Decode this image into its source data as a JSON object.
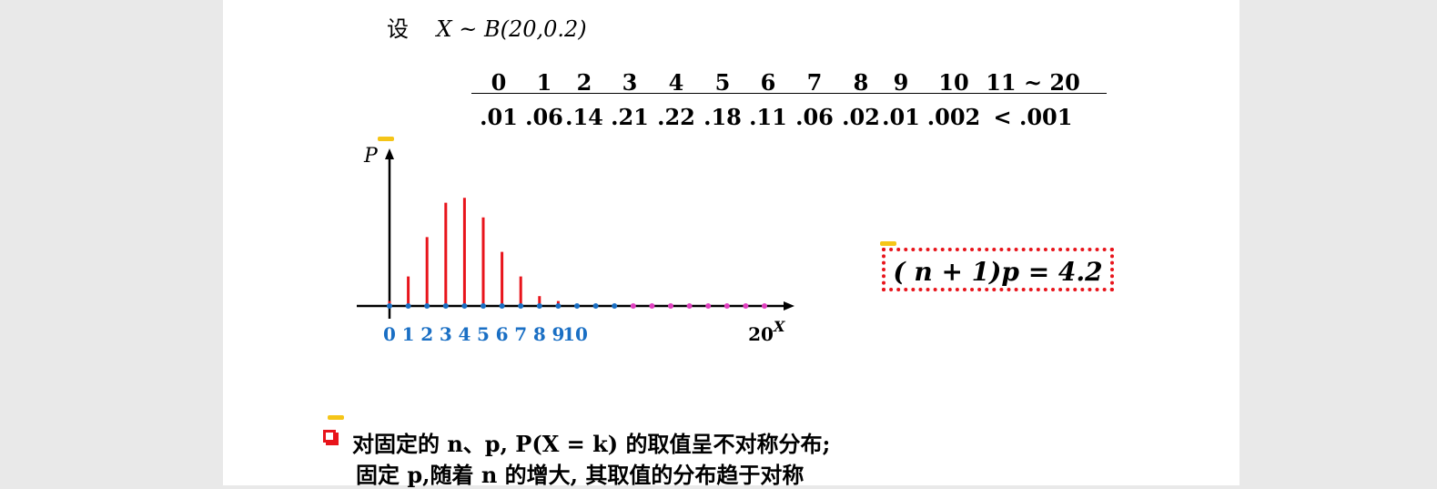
{
  "intro": {
    "prefix": "设",
    "expr": "X ~ B(20,0.2)"
  },
  "table": {
    "k": [
      "0",
      "1",
      "2",
      "3",
      "4",
      "5",
      "6",
      "7",
      "8",
      "9",
      "10",
      "11 ~ 20"
    ],
    "p": [
      ".01",
      ".06",
      ".14",
      ".21",
      ".22",
      ".18",
      ".11",
      ".06",
      ".02",
      ".01",
      ".002",
      "< .001"
    ]
  },
  "chart_data": {
    "type": "bar",
    "ylabel": "P",
    "xlabel": "X",
    "x": [
      0,
      1,
      2,
      3,
      4,
      5,
      6,
      7,
      8,
      9,
      10
    ],
    "values": [
      0.01,
      0.06,
      0.14,
      0.21,
      0.22,
      0.18,
      0.11,
      0.06,
      0.02,
      0.01,
      0.002
    ],
    "tick_labels": [
      "0",
      "1",
      "2",
      "3",
      "4",
      "5",
      "6",
      "7",
      "8",
      "9",
      "10"
    ],
    "end_label": "20",
    "colors": {
      "bars": "#e8141b",
      "ticks_low": "#1a6fc4",
      "ticks_high": "#e040c0",
      "labels": "#1a6fc4"
    }
  },
  "formula": "( n + 1)p = 4.2",
  "bullets": {
    "line1": "对固定的 n、p, P(X = k) 的取值呈不对称分布;",
    "line2": "固定 p,随着 n 的增大, 其取值的分布趋于对称"
  }
}
